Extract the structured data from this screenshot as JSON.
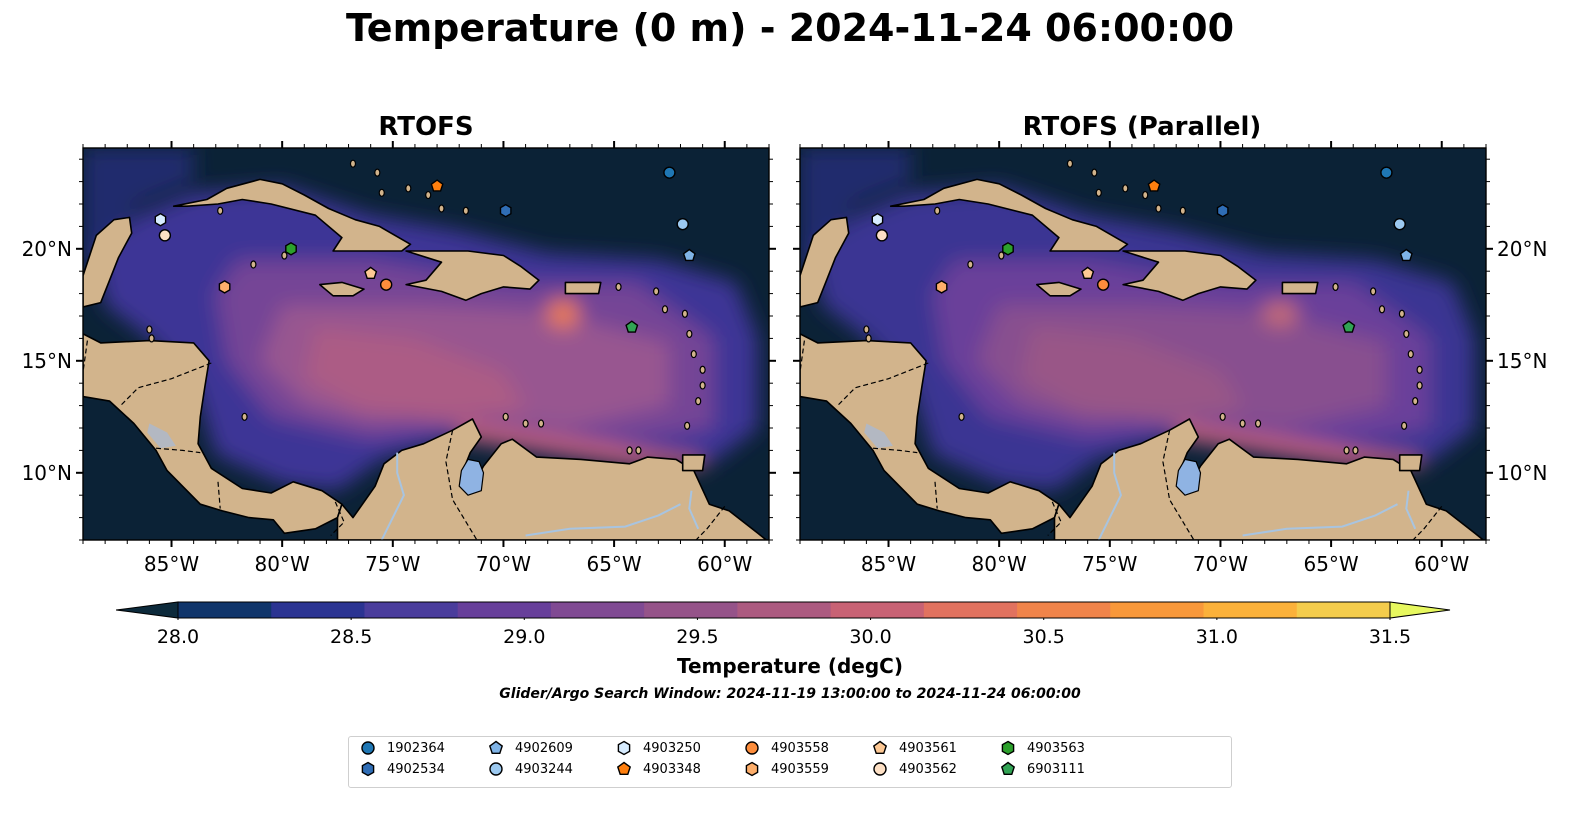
{
  "title": "Temperature (0 m) - 2024-11-24 06:00:00",
  "panels": [
    {
      "title": "RTOFS"
    },
    {
      "title": "RTOFS (Parallel)"
    }
  ],
  "map": {
    "lon_range": [
      -89,
      -58
    ],
    "lat_range": [
      7,
      24.5
    ],
    "lon_ticks": [
      "85°W",
      "80°W",
      "75°W",
      "70°W",
      "65°W",
      "60°W"
    ],
    "lat_ticks": [
      "20°N",
      "15°N",
      "10°N"
    ],
    "colors": {
      "ocean_deep": "#0b2236",
      "land": "#d2b48c",
      "lake": "#8fb3e3",
      "river": "#a8c4e0"
    }
  },
  "colorbar": {
    "ticks": [
      "28.0",
      "28.5",
      "29.0",
      "29.5",
      "30.0",
      "30.5",
      "31.0",
      "31.5"
    ],
    "label": "Temperature (degC)",
    "range": [
      28.0,
      31.5
    ],
    "colors": [
      "#0d2a3b",
      "#10356b",
      "#2b3492",
      "#4a3d9c",
      "#673f9a",
      "#804a93",
      "#955389",
      "#ac5a80",
      "#c86274",
      "#e1725f",
      "#f0844a",
      "#f8983a",
      "#fbb13a",
      "#f4cc4c",
      "#e7f85f"
    ]
  },
  "window_note": "Glider/Argo Search Window: 2024-11-19 13:00:00 to 2024-11-24 06:00:00",
  "legend": [
    {
      "id": "1902364",
      "marker": "circle",
      "color": "#1f77b4",
      "lon": -62.5,
      "lat": 23.4
    },
    {
      "id": "4902534",
      "marker": "hexagon",
      "color": "#2f6db5",
      "lon": -69.9,
      "lat": 21.7
    },
    {
      "id": "4902609",
      "marker": "pentagon",
      "color": "#7fb3e6",
      "lon": -61.6,
      "lat": 19.7
    },
    {
      "id": "4903244",
      "marker": "circle",
      "color": "#9cc9f0",
      "lon": -61.9,
      "lat": 21.1
    },
    {
      "id": "4903250",
      "marker": "hexagon",
      "color": "#d7ecff",
      "lon": -85.5,
      "lat": 21.3
    },
    {
      "id": "4903348",
      "marker": "pentagon",
      "color": "#ff7f0e",
      "lon": -73.0,
      "lat": 22.8
    },
    {
      "id": "4903558",
      "marker": "circle",
      "color": "#fd8d3c",
      "lon": -75.3,
      "lat": 18.4
    },
    {
      "id": "4903559",
      "marker": "hexagon",
      "color": "#fdae6b",
      "lon": -82.6,
      "lat": 18.3
    },
    {
      "id": "4903561",
      "marker": "pentagon",
      "color": "#fdc894",
      "lon": -76.0,
      "lat": 18.9
    },
    {
      "id": "4903562",
      "marker": "circle",
      "color": "#fde0c5",
      "lon": -85.3,
      "lat": 20.6
    },
    {
      "id": "4903563",
      "marker": "hexagon",
      "color": "#2ca02c",
      "lon": -79.6,
      "lat": 20.0
    },
    {
      "id": "6903111",
      "marker": "pentagon",
      "color": "#31a354",
      "lon": -64.2,
      "lat": 16.5
    }
  ]
}
